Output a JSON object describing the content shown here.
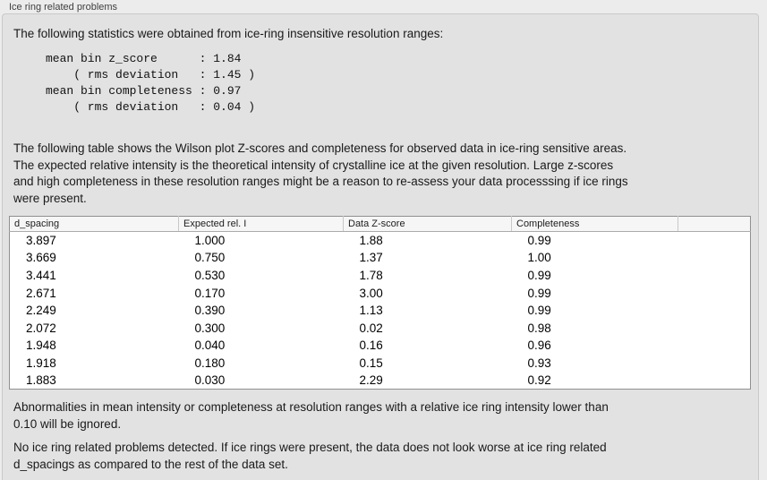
{
  "panel": {
    "title": "Ice ring related problems"
  },
  "intro": {
    "text": "The following statistics were obtained from ice-ring insensitive resolution ranges:"
  },
  "stats": {
    "lines": [
      "mean bin z_score      : 1.84",
      "    ( rms deviation   : 1.45 )",
      "mean bin completeness : 0.97",
      "    ( rms deviation   : 0.04 )"
    ]
  },
  "table_intro": {
    "text": "The following table shows the Wilson plot Z-scores and completeness for observed data in ice-ring sensitive areas.\nThe expected relative intensity is the theoretical intensity of crystalline ice at the given resolution. Large z-scores\nand high completeness in these resolution ranges might be a reason to re-assess your data processsing if ice rings\nwere present."
  },
  "table": {
    "columns": [
      "d_spacing",
      "Expected rel. I",
      "Data Z-score",
      "Completeness"
    ],
    "rows": [
      [
        "3.897",
        "1.000",
        "1.88",
        "0.99"
      ],
      [
        "3.669",
        "0.750",
        "1.37",
        "1.00"
      ],
      [
        "3.441",
        "0.530",
        "1.78",
        "0.99"
      ],
      [
        "2.671",
        "0.170",
        "3.00",
        "0.99"
      ],
      [
        "2.249",
        "0.390",
        "1.13",
        "0.99"
      ],
      [
        "2.072",
        "0.300",
        "0.02",
        "0.98"
      ],
      [
        "1.948",
        "0.040",
        "0.16",
        "0.96"
      ],
      [
        "1.918",
        "0.180",
        "0.15",
        "0.93"
      ],
      [
        "1.883",
        "0.030",
        "2.29",
        "0.92"
      ]
    ]
  },
  "notes": {
    "ignore_note": "Abnormalities in mean intensity or completeness at resolution ranges with a relative ice ring intensity lower than\n0.10 will be ignored.",
    "conclusion": "No ice ring related problems detected. If ice rings were present, the data does not look worse at ice ring related\nd_spacings as compared to the rest of the data set."
  },
  "colors": {
    "page_bg": "#ececec",
    "panel_bg": "#e2e2e2",
    "panel_border": "#c9c9c9",
    "title_text": "#3f3f3f",
    "text": "#1a1a1a",
    "table_header_bg": "#f6f6f6",
    "table_header_sep": "#c8c8c8",
    "table_header_border": "#ababab",
    "table_border": "#909090",
    "table_body_bg": "#ffffff"
  }
}
